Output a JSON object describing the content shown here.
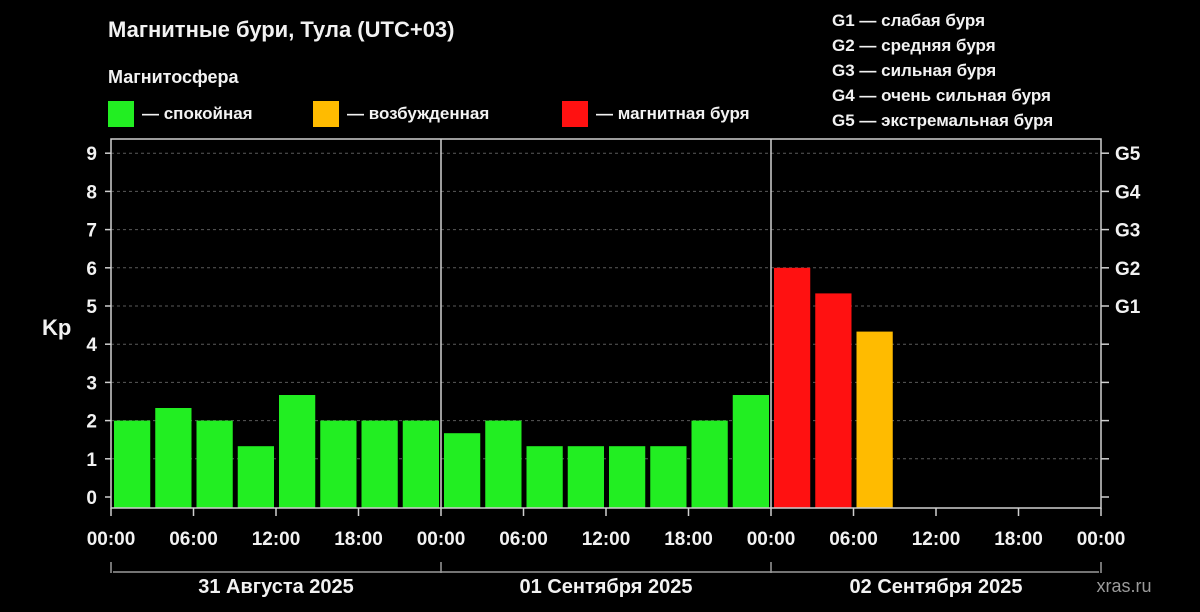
{
  "title": "Магнитные бури, Тула (UTC+03)",
  "legend": {
    "title": "Магнитосфера",
    "items": [
      {
        "label": "— спокойная",
        "color": "#22ee22"
      },
      {
        "label": "— возбужденная",
        "color": "#ffbb00"
      },
      {
        "label": "— магнитная буря",
        "color": "#ff1111"
      }
    ]
  },
  "storm_levels": [
    "G1 — слабая буря",
    "G2 — средняя буря",
    "G3 — сильная буря",
    "G4 — очень сильная буря",
    "G5 — экстремальная буря"
  ],
  "watermark": "xras.ru",
  "chart_data": {
    "type": "bar",
    "ylabel": "Kp",
    "ylim": [
      0,
      9
    ],
    "yticks": [
      0,
      1,
      2,
      3,
      4,
      5,
      6,
      7,
      8,
      9
    ],
    "right_axis_ticks": [
      {
        "label": "G1",
        "value": 5
      },
      {
        "label": "G2",
        "value": 6
      },
      {
        "label": "G3",
        "value": 7
      },
      {
        "label": "G4",
        "value": 8
      },
      {
        "label": "G5",
        "value": 9
      }
    ],
    "x_tick_labels": [
      "00:00",
      "06:00",
      "12:00",
      "18:00",
      "00:00",
      "06:00",
      "12:00",
      "18:00",
      "00:00",
      "06:00",
      "12:00",
      "18:00",
      "00:00"
    ],
    "days": [
      "31 Августа 2025",
      "01 Сентября 2025",
      "02 Сентября 2025"
    ],
    "interval_hours": 3,
    "grid": "horizontal dashed",
    "values": [
      2.0,
      2.33,
      2.0,
      1.33,
      2.67,
      2.0,
      2.0,
      2.0,
      1.67,
      2.0,
      1.33,
      1.33,
      1.33,
      1.33,
      2.0,
      2.67,
      6.0,
      5.33,
      4.33
    ],
    "levels": [
      "quiet",
      "quiet",
      "quiet",
      "quiet",
      "quiet",
      "quiet",
      "quiet",
      "quiet",
      "quiet",
      "quiet",
      "quiet",
      "quiet",
      "quiet",
      "quiet",
      "quiet",
      "quiet",
      "storm",
      "storm",
      "excited"
    ],
    "level_colors": {
      "quiet": "#22ee22",
      "excited": "#ffbb00",
      "storm": "#ff1111"
    }
  }
}
